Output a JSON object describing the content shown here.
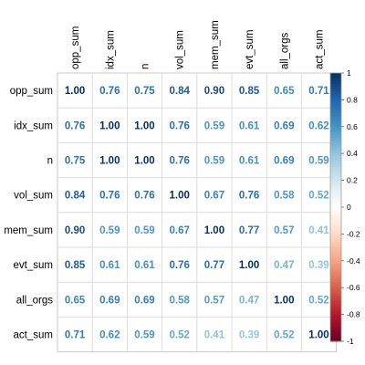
{
  "chart_data": {
    "type": "heatmap",
    "variables": [
      "opp_sum",
      "idx_sum",
      "n",
      "vol_sum",
      "mem_sum",
      "evt_sum",
      "all_orgs",
      "act_sum"
    ],
    "matrix": [
      [
        1.0,
        0.76,
        0.75,
        0.84,
        0.9,
        0.85,
        0.65,
        0.71
      ],
      [
        0.76,
        1.0,
        1.0,
        0.76,
        0.59,
        0.61,
        0.69,
        0.62
      ],
      [
        0.75,
        1.0,
        1.0,
        0.76,
        0.59,
        0.61,
        0.69,
        0.59
      ],
      [
        0.84,
        0.76,
        0.76,
        1.0,
        0.67,
        0.76,
        0.58,
        0.52
      ],
      [
        0.9,
        0.59,
        0.59,
        0.67,
        1.0,
        0.77,
        0.57,
        0.41
      ],
      [
        0.85,
        0.61,
        0.61,
        0.76,
        0.77,
        1.0,
        0.47,
        0.39
      ],
      [
        0.65,
        0.69,
        0.69,
        0.58,
        0.57,
        0.47,
        1.0,
        0.52
      ],
      [
        0.71,
        0.62,
        0.59,
        0.52,
        0.41,
        0.39,
        0.52,
        1.0
      ]
    ],
    "colorbar": {
      "range": [
        -1,
        1
      ],
      "ticks": [
        "1",
        "0.8",
        "0.6",
        "0.4",
        "0.2",
        "0",
        "-0.2",
        "-0.4",
        "-0.6",
        "-0.8",
        "-1"
      ],
      "palette": [
        "#67001F",
        "#B2182B",
        "#D6604D",
        "#F4A582",
        "#FDDBC7",
        "#FFFFFF",
        "#D1E5F0",
        "#92C5DE",
        "#4393C3",
        "#2166AC",
        "#053061"
      ]
    },
    "grid": true,
    "legend_position": "right"
  }
}
